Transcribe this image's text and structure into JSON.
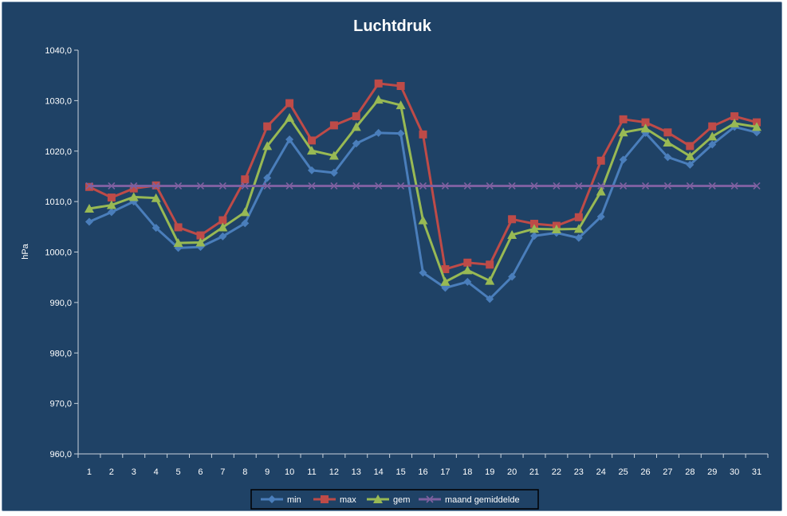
{
  "chart_data": {
    "type": "line",
    "title": "Luchtdruk",
    "xlabel": "",
    "ylabel": "hPa",
    "ylim": [
      960,
      1040
    ],
    "ytick_step": 10,
    "ytick_labels": [
      "960,0",
      "970,0",
      "980,0",
      "990,0",
      "1000,0",
      "1010,0",
      "1020,0",
      "1030,0",
      "1040,0"
    ],
    "categories": [
      "1",
      "2",
      "3",
      "4",
      "5",
      "6",
      "7",
      "8",
      "9",
      "10",
      "11",
      "12",
      "13",
      "14",
      "15",
      "16",
      "17",
      "18",
      "19",
      "20",
      "21",
      "22",
      "23",
      "24",
      "25",
      "26",
      "27",
      "28",
      "29",
      "30",
      "31"
    ],
    "grid": false,
    "legend_position": "bottom",
    "series": [
      {
        "name": "min",
        "color": "#4a7ebb",
        "marker": "diamond",
        "values": [
          1006.0,
          1007.9,
          1010.0,
          1004.8,
          1000.8,
          1001.0,
          1003.1,
          1005.7,
          1014.7,
          1022.3,
          1016.2,
          1015.7,
          1021.5,
          1023.6,
          1023.5,
          995.9,
          992.9,
          994.1,
          990.7,
          995.1,
          1003.2,
          1003.8,
          1002.8,
          1007.0,
          1018.3,
          1023.6,
          1018.8,
          1017.3,
          1021.3,
          1024.8,
          1023.7
        ]
      },
      {
        "name": "max",
        "color": "#be4b48",
        "marker": "square",
        "values": [
          1012.9,
          1010.8,
          1012.6,
          1013.2,
          1004.9,
          1003.3,
          1006.3,
          1014.4,
          1024.9,
          1029.5,
          1022.1,
          1025.1,
          1026.9,
          1033.4,
          1032.9,
          1023.3,
          996.6,
          997.9,
          997.5,
          1006.5,
          1005.6,
          1005.2,
          1006.9,
          1018.1,
          1026.3,
          1025.7,
          1023.7,
          1021.0,
          1024.9,
          1026.9,
          1025.7
        ]
      },
      {
        "name": "gem",
        "color": "#98b954",
        "marker": "triangle",
        "values": [
          1008.6,
          1009.3,
          1010.9,
          1010.7,
          1001.8,
          1001.9,
          1004.9,
          1007.9,
          1021.0,
          1026.6,
          1020.1,
          1019.1,
          1024.8,
          1030.2,
          1029.1,
          1006.3,
          994.1,
          996.4,
          994.3,
          1003.4,
          1004.6,
          1004.5,
          1004.6,
          1012.0,
          1023.7,
          1024.5,
          1021.7,
          1019.0,
          1022.9,
          1025.5,
          1024.8
        ]
      },
      {
        "name": "maand gemiddelde",
        "color": "#7d60a0",
        "marker": "x",
        "values": [
          1013.1,
          1013.1,
          1013.1,
          1013.1,
          1013.1,
          1013.1,
          1013.1,
          1013.1,
          1013.1,
          1013.1,
          1013.1,
          1013.1,
          1013.1,
          1013.1,
          1013.1,
          1013.1,
          1013.1,
          1013.1,
          1013.1,
          1013.1,
          1013.1,
          1013.1,
          1013.1,
          1013.1,
          1013.1,
          1013.1,
          1013.1,
          1013.1,
          1013.1,
          1013.1,
          1013.1
        ]
      }
    ]
  }
}
